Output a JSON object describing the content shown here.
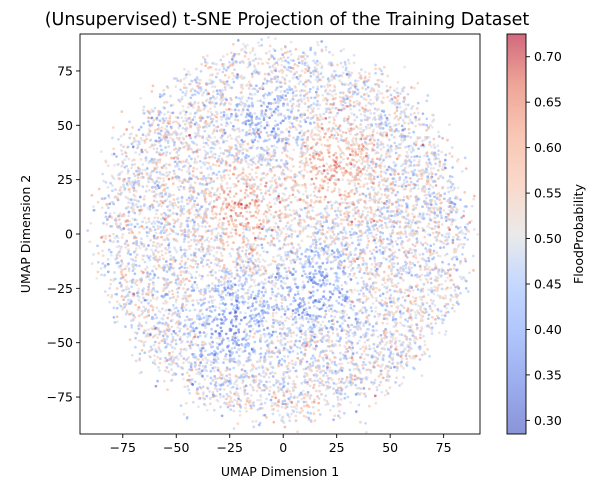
{
  "chart_data": {
    "type": "scatter",
    "title": "(Unsupervised) t-SNE Projection of the Training Dataset",
    "xlabel": "UMAP Dimension 1",
    "ylabel": "UMAP Dimension 2",
    "xlim": [
      -95,
      92
    ],
    "ylim": [
      -92,
      92
    ],
    "xticks": [
      -75,
      -50,
      -25,
      0,
      25,
      50,
      75
    ],
    "yticks": [
      -75,
      -50,
      -25,
      0,
      25,
      50,
      75
    ],
    "xtick_labels": [
      "−75",
      "−50",
      "−25",
      "0",
      "25",
      "50",
      "75"
    ],
    "ytick_labels": [
      "−75",
      "−50",
      "−25",
      "0",
      "25",
      "50",
      "75"
    ],
    "grid": false,
    "colormap": "coolwarm",
    "point_alpha": 0.6,
    "point_count_estimate": 9000,
    "cloud": {
      "shape": "disc",
      "center": [
        0,
        0
      ],
      "radius": 85
    },
    "colorbar": {
      "label": "FloodProbability",
      "range": [
        0.285,
        0.725
      ],
      "ticks": [
        0.3,
        0.35,
        0.4,
        0.45,
        0.5,
        0.55,
        0.6,
        0.65,
        0.7
      ],
      "tick_labels": [
        "0.30",
        "0.35",
        "0.40",
        "0.45",
        "0.50",
        "0.55",
        "0.60",
        "0.65",
        "0.70"
      ]
    },
    "notable_clusters": [
      {
        "center": [
          -25,
          -42
        ],
        "value": 0.36
      },
      {
        "center": [
          15,
          -27
        ],
        "value": 0.37
      },
      {
        "center": [
          -5,
          50
        ],
        "value": 0.4
      },
      {
        "center": [
          -18,
          12
        ],
        "value": 0.62
      },
      {
        "center": [
          22,
          35
        ],
        "value": 0.63
      }
    ]
  }
}
